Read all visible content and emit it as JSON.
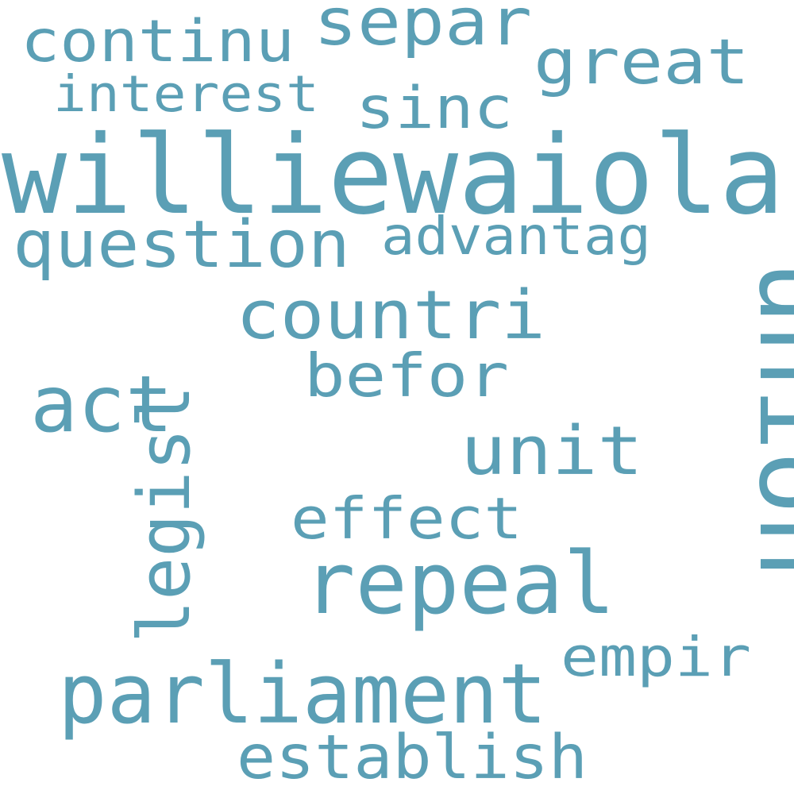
{
  "word_cloud": {
    "color": "#5b9fb5",
    "words": [
      {
        "text": "williewaiola",
        "weight": 1.0
      },
      {
        "text": "union",
        "weight": 0.93
      },
      {
        "text": "repeal",
        "weight": 0.78
      },
      {
        "text": "parliament",
        "weight": 0.76
      },
      {
        "text": "act",
        "weight": 0.72
      },
      {
        "text": "legisl",
        "weight": 0.66
      },
      {
        "text": "countri",
        "weight": 0.62
      },
      {
        "text": "unit",
        "weight": 0.62
      },
      {
        "text": "separ",
        "weight": 0.6
      },
      {
        "text": "question",
        "weight": 0.6
      },
      {
        "text": "great",
        "weight": 0.56
      },
      {
        "text": "establish",
        "weight": 0.56
      },
      {
        "text": "befor",
        "weight": 0.54
      },
      {
        "text": "continu",
        "weight": 0.53
      },
      {
        "text": "sinc",
        "weight": 0.53
      },
      {
        "text": "effect",
        "weight": 0.52
      },
      {
        "text": "empir",
        "weight": 0.5
      },
      {
        "text": "advantag",
        "weight": 0.48
      },
      {
        "text": "interest",
        "weight": 0.46
      }
    ]
  }
}
